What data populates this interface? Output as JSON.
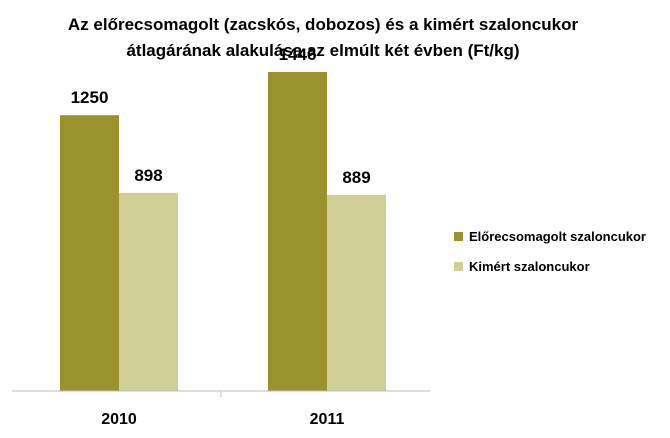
{
  "chart_data": {
    "type": "bar",
    "title_lines": [
      "Az előrecsomagolt (zacskós, dobozos) és a kimért szaloncukor",
      "átlagárának alakulása az elmúlt két évben  (Ft/kg)"
    ],
    "categories": [
      "2010",
      "2011"
    ],
    "series": [
      {
        "name": "Előrecsomagolt szaloncukor",
        "values": [
          1250,
          1446
        ],
        "color": "#9a932d"
      },
      {
        "name": "Kimért szaloncukor",
        "values": [
          898,
          889
        ],
        "color": "#cfcf96"
      }
    ],
    "ylim": [
      0,
      1600
    ],
    "grid": false,
    "legend": "right"
  }
}
